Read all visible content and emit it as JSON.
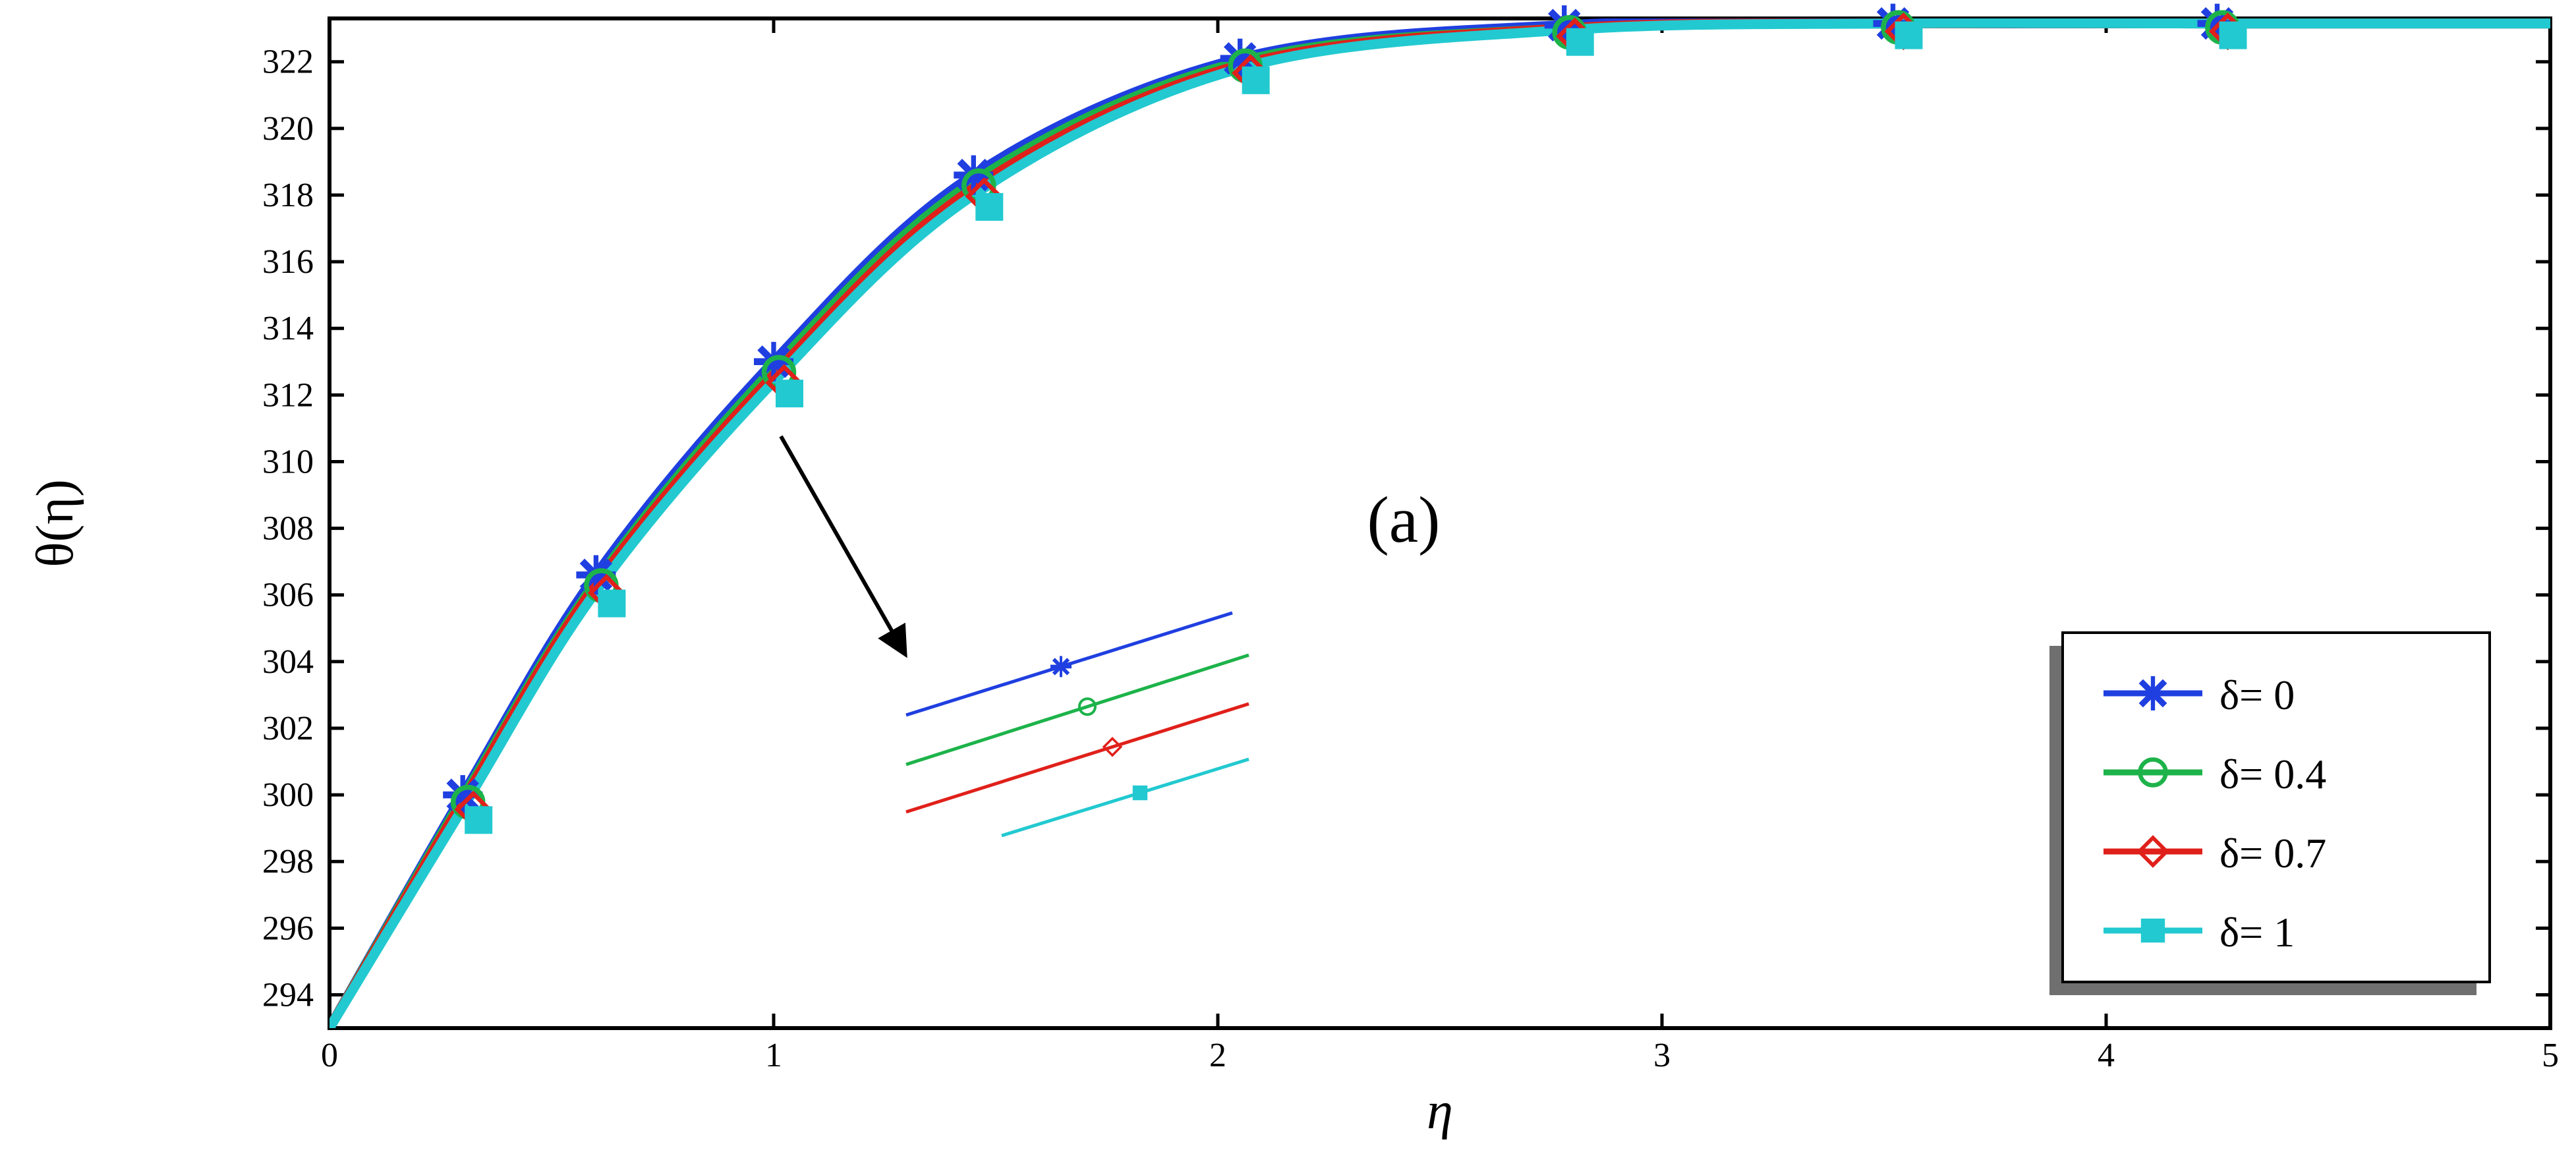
{
  "chart_data": {
    "type": "line",
    "title": "",
    "panel_label": "(a)",
    "xlabel": "η",
    "ylabel": "θ(η)",
    "xlim": [
      0,
      5
    ],
    "ylim": [
      293,
      323.3
    ],
    "x_ticks": [
      "0",
      "1",
      "2",
      "3",
      "4",
      "5"
    ],
    "y_ticks": [
      "294",
      "296",
      "298",
      "300",
      "302",
      "304",
      "306",
      "308",
      "310",
      "312",
      "314",
      "316",
      "318",
      "320",
      "322"
    ],
    "grid": false,
    "legend_position": "bottom-right",
    "x": [
      0,
      0.3,
      0.6,
      1.0,
      1.45,
      2.05,
      2.78,
      3.52,
      4.25,
      5.0
    ],
    "series": [
      {
        "name": "δ= 0",
        "color": "#1f3fe0",
        "marker": "asterisk",
        "values": [
          293.0,
          300.0,
          306.6,
          313.0,
          318.6,
          322.1,
          323.1,
          323.15,
          323.15,
          323.15
        ]
      },
      {
        "name": "δ= 0.4",
        "color": "#1db34a",
        "marker": "circle",
        "values": [
          293.0,
          299.9,
          306.4,
          312.8,
          318.4,
          322.0,
          323.0,
          323.15,
          323.15,
          323.15
        ]
      },
      {
        "name": "δ= 0.7",
        "color": "#e0201a",
        "marker": "diamond",
        "values": [
          293.0,
          299.8,
          306.3,
          312.6,
          318.2,
          321.9,
          323.0,
          323.15,
          323.15,
          323.15
        ]
      },
      {
        "name": "δ= 1",
        "color": "#22c9d0",
        "marker": "square",
        "values": [
          293.0,
          299.6,
          306.1,
          312.4,
          318.0,
          321.8,
          322.95,
          323.15,
          323.15,
          323.15
        ]
      }
    ]
  }
}
